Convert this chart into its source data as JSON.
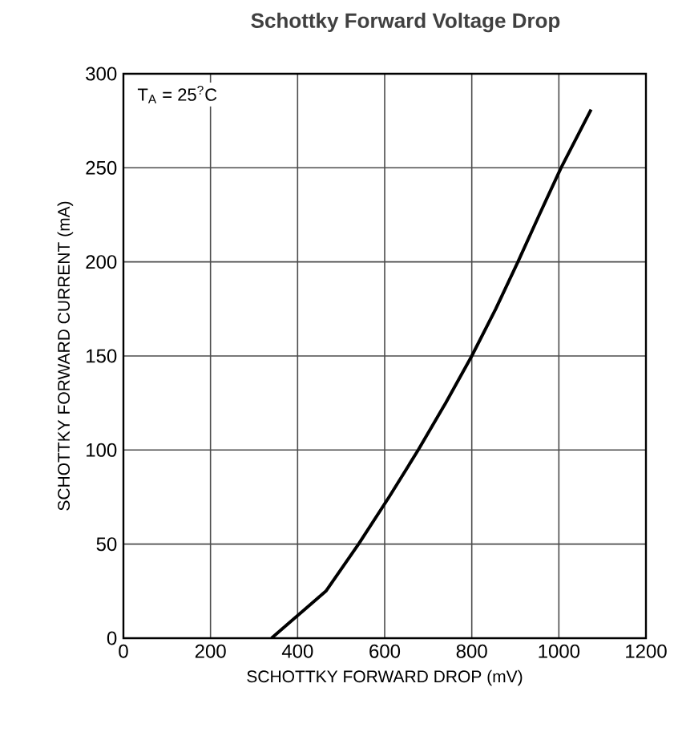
{
  "chart_data": {
    "type": "line",
    "title": "Schottky Forward Voltage Drop",
    "xlabel": "SCHOTTKY FORWARD DROP (mV)",
    "ylabel": "SCHOTTKY FORWARD CURRENT (mA)",
    "annotations": [
      "T$_{A}$ = 25$^{?}$C"
    ],
    "x": [
      340,
      400,
      465,
      540,
      610,
      677,
      740,
      800,
      855,
      906,
      955,
      1005,
      1074
    ],
    "series": [
      {
        "color": "#000000",
        "values": [
          0,
          12,
          25,
          50,
          75,
          100,
          125,
          150,
          175,
          200,
          225,
          250,
          281
        ]
      }
    ],
    "xlim": [
      0,
      1200
    ],
    "ylim": [
      0,
      300
    ],
    "xticks": [
      0,
      200,
      400,
      600,
      800,
      1000,
      1200
    ],
    "yticks": [
      0,
      50,
      100,
      150,
      200,
      250,
      300
    ],
    "grid": true,
    "marker": "none",
    "line_style": "solid"
  }
}
